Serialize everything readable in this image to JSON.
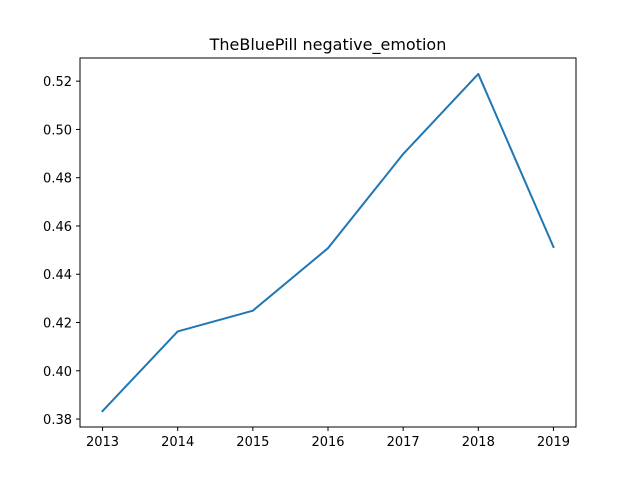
{
  "chart_data": {
    "type": "line",
    "title": "TheBluePill negative_emotion",
    "xlabel": "",
    "ylabel": "",
    "x": [
      2013,
      2014,
      2015,
      2016,
      2017,
      2018,
      2019
    ],
    "series": [
      {
        "values": [
          0.3833,
          0.4163,
          0.4249,
          0.4508,
          0.4898,
          0.523,
          0.4513
        ],
        "color": "#1f77b4"
      }
    ],
    "xlim": [
      2012.7,
      2019.3
    ],
    "ylim": [
      0.3767,
      0.5296
    ],
    "xticks": [
      "2013",
      "2014",
      "2015",
      "2016",
      "2017",
      "2018",
      "2019"
    ],
    "yticks": [
      "0.38",
      "0.40",
      "0.42",
      "0.44",
      "0.46",
      "0.48",
      "0.50",
      "0.52"
    ],
    "grid": false,
    "legend": "none"
  }
}
